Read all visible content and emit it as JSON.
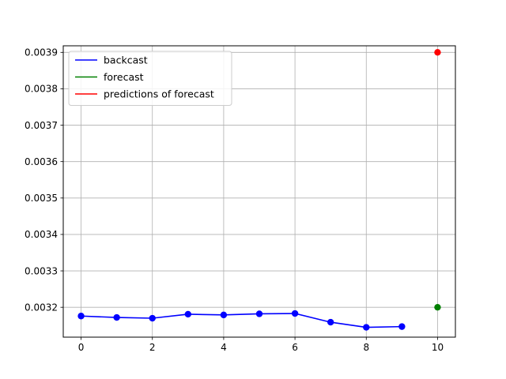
{
  "chart_data": {
    "type": "line",
    "title": "",
    "xlabel": "",
    "ylabel": "",
    "xlim": [
      -0.5,
      10.5
    ],
    "ylim": [
      0.003118,
      0.003918
    ],
    "x_ticks": [
      0,
      2,
      4,
      6,
      8,
      10
    ],
    "x_tick_labels": [
      "0",
      "2",
      "4",
      "6",
      "8",
      "10"
    ],
    "y_ticks": [
      0.0032,
      0.0033,
      0.0034,
      0.0035,
      0.0036,
      0.0037,
      0.0038,
      0.0039
    ],
    "y_tick_labels": [
      "0.0032",
      "0.0033",
      "0.0034",
      "0.0035",
      "0.0036",
      "0.0037",
      "0.0038",
      "0.0039"
    ],
    "grid": true,
    "legend_position": "top-left",
    "series": [
      {
        "name": "backcast",
        "color": "#0000ff",
        "style": "line-with-markers",
        "x": [
          0,
          1,
          2,
          3,
          4,
          5,
          6,
          7,
          8,
          9
        ],
        "y": [
          0.003176,
          0.003172,
          0.00317,
          0.003181,
          0.003179,
          0.003182,
          0.003183,
          0.003159,
          0.003145,
          0.003147
        ]
      },
      {
        "name": "forecast",
        "color": "#008000",
        "style": "marker",
        "x": [
          10
        ],
        "y": [
          0.0032
        ]
      },
      {
        "name": "predictions of forecast",
        "color": "#ff0000",
        "style": "marker",
        "x": [
          10
        ],
        "y": [
          0.0039
        ]
      }
    ]
  }
}
